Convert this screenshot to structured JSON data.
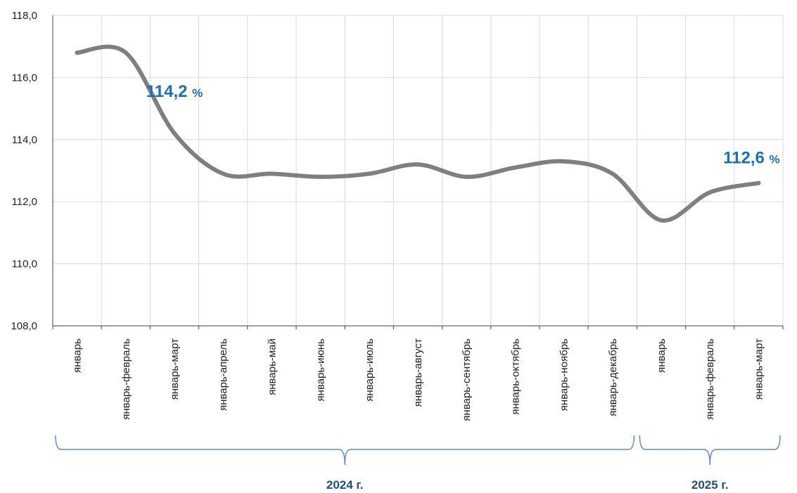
{
  "chart_data": {
    "type": "line",
    "categories": [
      "январь",
      "январь-февраль",
      "январь-март",
      "январь-апрель",
      "январь-май",
      "январь-июнь",
      "январь-июль",
      "январь-август",
      "январь-сентябрь",
      "январь-октябрь",
      "январь-ноябрь",
      "январь-декабрь",
      "январь",
      "январь-февраль",
      "январь-март"
    ],
    "series": [
      {
        "values": [
          116.8,
          116.8,
          114.2,
          112.9,
          112.9,
          112.8,
          112.9,
          113.2,
          112.8,
          113.1,
          113.3,
          112.9,
          111.4,
          112.3,
          112.6
        ]
      }
    ],
    "ylim": [
      108.0,
      118.0
    ],
    "yticks": [
      "108,0",
      "110,0",
      "112,0",
      "114,0",
      "116,0",
      "118,0"
    ],
    "grid": true,
    "annotations": [
      {
        "index": 2,
        "value": "114,2",
        "unit": "%"
      },
      {
        "index": 14,
        "value": "112,6",
        "unit": "%"
      }
    ],
    "groups": [
      {
        "label": "2024 г.",
        "start": 0,
        "end": 11
      },
      {
        "label": "2025 г.",
        "start": 12,
        "end": 14
      }
    ],
    "colors": {
      "line": "#7f7f7f",
      "grid": "#d9d9d9",
      "annotation": "#1f6fb4",
      "bracket": "#5b8cc7",
      "group_label": "#1f4e79"
    }
  }
}
